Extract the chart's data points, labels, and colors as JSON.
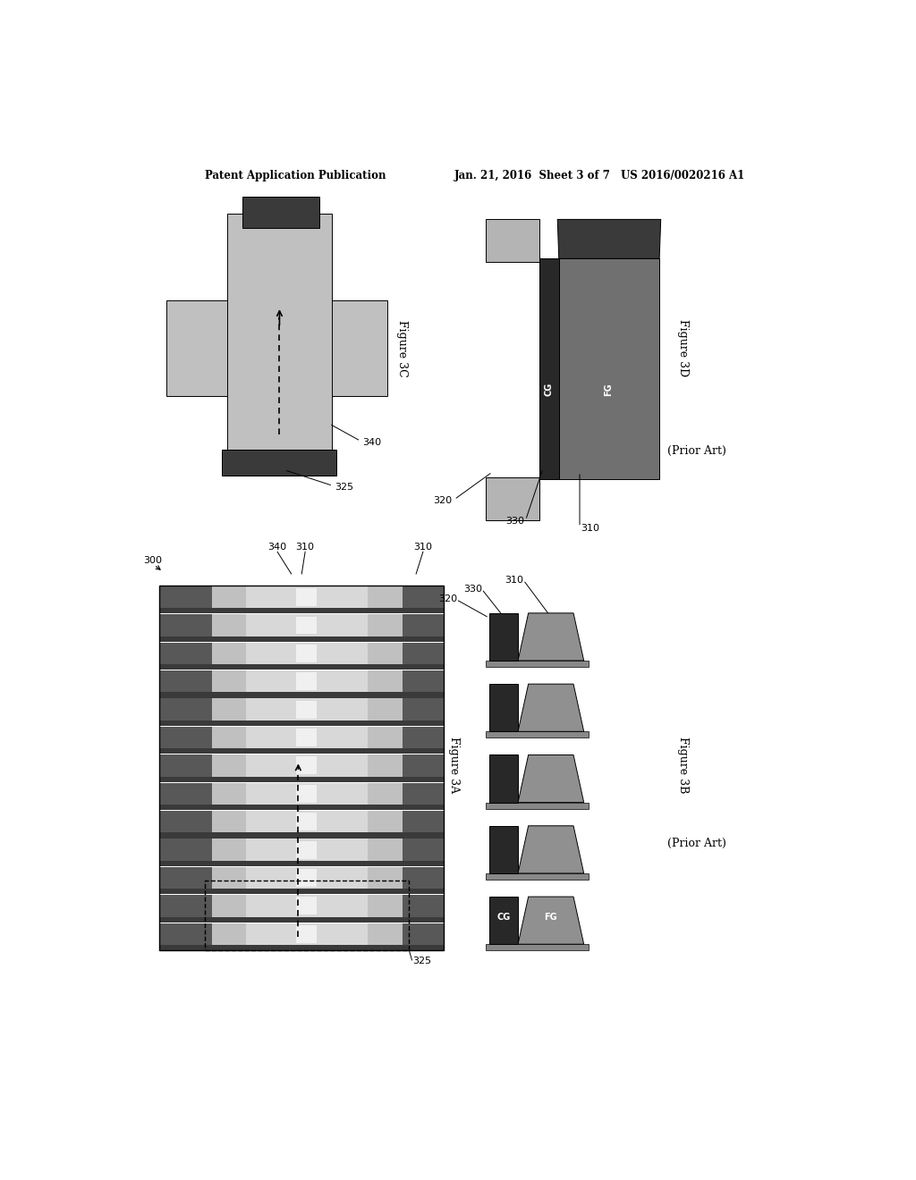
{
  "bg_color": "#ffffff",
  "header_left": "Patent Application Publication",
  "header_mid": "Jan. 21, 2016  Sheet 3 of 7",
  "header_right": "US 2016/0020216 A1",
  "fig3c_label": "Figure 3C",
  "fig3d_label": "Figure 3D",
  "fig3a_label": "Figure 3A",
  "fig3b_label": "Figure 3B",
  "prior_art_label": "(Prior Art)",
  "c_dark": "#3a3a3a",
  "c_dark2": "#282828",
  "c_med": "#909090",
  "c_light": "#c0c0c0",
  "c_vlight": "#d8d8d8",
  "c_black": "#111111",
  "c_fg": "#707070",
  "c_cg": "#b4b4b4"
}
